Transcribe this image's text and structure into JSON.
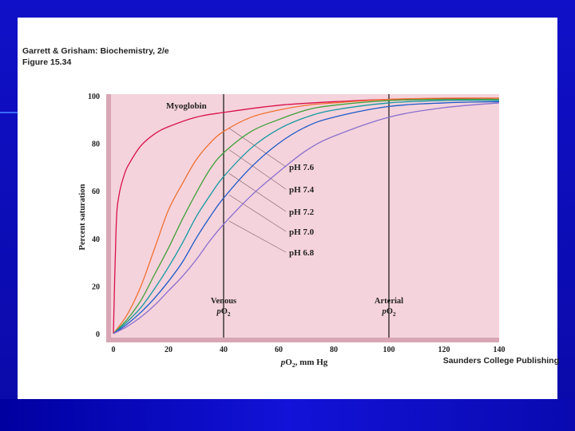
{
  "slide": {
    "header_title": "Garrett & Grisham: Biochemistry, 2/e",
    "header_figure": "Figure 15.34",
    "publisher": "Saunders College Publishing"
  },
  "colors": {
    "slide_background": "#1010c8",
    "plot_background": "#f5d3dc",
    "myoglobin": "#d8104a",
    "ph76": "#f07030",
    "ph74": "#3fa03a",
    "ph72": "#1597a0",
    "ph70": "#1c59c8",
    "ph68": "#8a6fce"
  },
  "chart_data": {
    "type": "line",
    "xlabel": "pO2, mm Hg",
    "ylabel": "Percent saturation",
    "xlim": [
      0,
      140
    ],
    "ylim": [
      0,
      100
    ],
    "x_ticks": [
      0,
      20,
      40,
      60,
      80,
      100,
      120,
      140
    ],
    "y_ticks": [
      0,
      20,
      40,
      60,
      80,
      100
    ],
    "grid": false,
    "reference_lines": [
      {
        "x": 40,
        "label": "Venous",
        "sublabel": "pO2"
      },
      {
        "x": 100,
        "label": "Arterial",
        "sublabel": "pO2"
      }
    ],
    "series": [
      {
        "name": "Myoglobin",
        "color_key": "myoglobin",
        "x": [
          0,
          1,
          2,
          4,
          6,
          10,
          15,
          20,
          30,
          40,
          60,
          80,
          100,
          120,
          140
        ],
        "y": [
          0,
          45,
          58,
          67,
          72,
          79,
          84,
          87,
          91,
          93,
          96,
          97.5,
          98.5,
          98.8,
          99
        ]
      },
      {
        "name": "pH 7.6",
        "color_key": "ph76",
        "x": [
          0,
          5,
          10,
          15,
          20,
          25,
          30,
          35,
          40,
          50,
          60,
          70,
          80,
          100,
          120,
          140
        ],
        "y": [
          0,
          8,
          20,
          36,
          52,
          63,
          73,
          80,
          85,
          91,
          94,
          96,
          97,
          98.5,
          99,
          99
        ]
      },
      {
        "name": "pH 7.4",
        "color_key": "ph74",
        "x": [
          0,
          5,
          10,
          15,
          20,
          25,
          30,
          35,
          40,
          50,
          60,
          70,
          80,
          100,
          120,
          140
        ],
        "y": [
          0,
          6,
          14,
          25,
          36,
          48,
          59,
          69,
          76,
          85,
          90,
          94,
          96,
          98,
          98.5,
          98.5
        ]
      },
      {
        "name": "pH 7.2",
        "color_key": "ph72",
        "x": [
          0,
          5,
          10,
          15,
          20,
          25,
          30,
          35,
          40,
          50,
          60,
          70,
          80,
          100,
          120,
          140
        ],
        "y": [
          0,
          5,
          11,
          19,
          28,
          38,
          49,
          58,
          66,
          78,
          86,
          91,
          94,
          97,
          98,
          98
        ]
      },
      {
        "name": "pH 7.0",
        "color_key": "ph70",
        "x": [
          0,
          5,
          10,
          15,
          20,
          25,
          30,
          35,
          40,
          50,
          60,
          70,
          80,
          100,
          120,
          140
        ],
        "y": [
          0,
          4,
          9,
          15,
          22,
          30,
          40,
          49,
          57,
          70,
          80,
          87,
          91,
          95.5,
          97,
          97.5
        ]
      },
      {
        "name": "pH 6.8",
        "color_key": "ph68",
        "x": [
          0,
          5,
          10,
          15,
          20,
          25,
          30,
          35,
          40,
          50,
          60,
          70,
          80,
          100,
          120,
          140
        ],
        "y": [
          0,
          3,
          7,
          12,
          18,
          24,
          31,
          39,
          46,
          58,
          68,
          77,
          83,
          91,
          95,
          97
        ]
      }
    ],
    "labels": {
      "myoglobin": "Myoglobin",
      "ph76": "pH 7.6",
      "ph74": "pH 7.4",
      "ph72": "pH 7.2",
      "ph70": "pH 7.0",
      "ph68": "pH 6.8",
      "venous": "Venous",
      "arterial": "Arterial",
      "po2_sub": "pO2"
    }
  }
}
